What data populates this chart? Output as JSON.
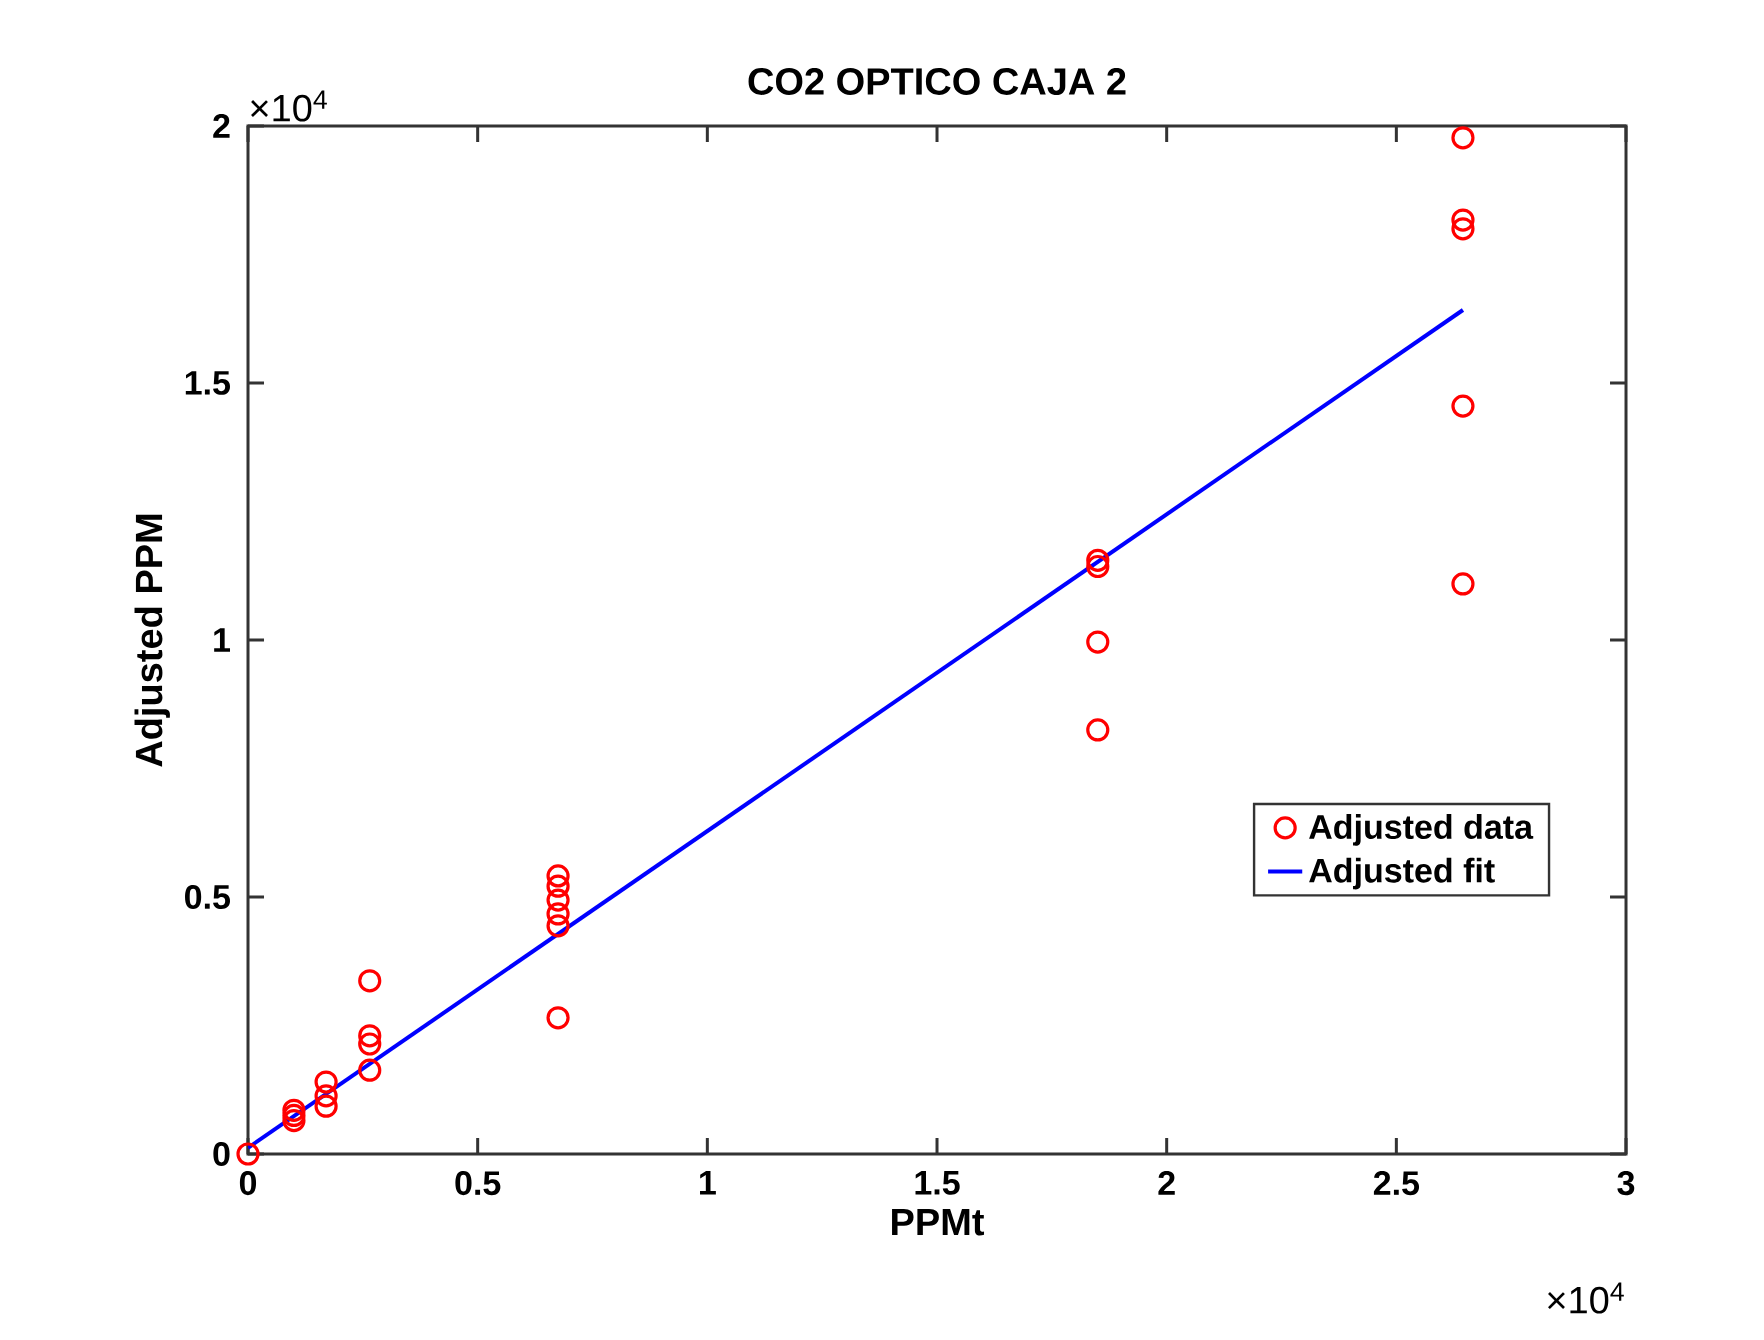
{
  "chart_data": {
    "type": "scatter",
    "title": "CO2 OPTICO CAJA 2",
    "xlabel": "PPMt",
    "ylabel": "Adjusted PPM",
    "annotations": [
      "×10$^{4}$",
      "×10$^{4}$"
    ],
    "xlim": [
      0,
      3
    ],
    "ylim": [
      0,
      2
    ],
    "xticks": [
      0,
      0.5,
      1,
      1.5,
      2,
      2.5,
      3
    ],
    "yticks": [
      0,
      0.5,
      1,
      1.5,
      2
    ],
    "legend": "right",
    "grid": false,
    "series": [
      {
        "name": "Adjusted data",
        "marker": "circle",
        "color": "#ff0000",
        "x": [
          0,
          0.1,
          0.1,
          0.1,
          0.17,
          0.17,
          0.17,
          0.265,
          0.265,
          0.265,
          0.265,
          0.675,
          0.675,
          0.675,
          0.675,
          0.675,
          0.675,
          1.85,
          1.85,
          1.85,
          1.85,
          2.645,
          2.645,
          2.645,
          2.645,
          2.645
        ],
        "values": [
          0,
          0.085,
          0.075,
          0.065,
          0.14,
          0.113,
          0.093,
          0.337,
          0.23,
          0.214,
          0.163,
          0.541,
          0.521,
          0.494,
          0.467,
          0.444,
          0.265,
          1.155,
          1.143,
          0.996,
          0.825,
          1.977,
          1.817,
          1.8,
          1.455,
          1.109
        ]
      },
      {
        "name": "Adjusted fit",
        "type": "line",
        "marker": "none",
        "line_style": "solid",
        "color": "#0000ff",
        "x": [
          0,
          2.645
        ],
        "values": [
          0.012,
          1.642
        ]
      }
    ]
  }
}
